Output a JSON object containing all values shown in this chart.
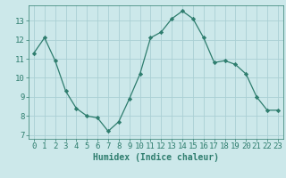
{
  "x": [
    0,
    1,
    2,
    3,
    4,
    5,
    6,
    7,
    8,
    9,
    10,
    11,
    12,
    13,
    14,
    15,
    16,
    17,
    18,
    19,
    20,
    21,
    22,
    23
  ],
  "y": [
    11.3,
    12.1,
    10.9,
    9.3,
    8.4,
    8.0,
    7.9,
    7.2,
    7.7,
    8.9,
    10.2,
    12.1,
    12.4,
    13.1,
    13.5,
    13.1,
    12.1,
    10.8,
    10.9,
    10.7,
    10.2,
    9.0,
    8.3,
    8.3
  ],
  "line_color": "#2e7d6e",
  "marker": "D",
  "marker_size": 2.2,
  "bg_color": "#cce8ea",
  "grid_color": "#aad0d4",
  "xlabel": "Humidex (Indice chaleur)",
  "ylim": [
    6.8,
    13.8
  ],
  "xlim": [
    -0.5,
    23.5
  ],
  "yticks": [
    7,
    8,
    9,
    10,
    11,
    12,
    13
  ],
  "xticks": [
    0,
    1,
    2,
    3,
    4,
    5,
    6,
    7,
    8,
    9,
    10,
    11,
    12,
    13,
    14,
    15,
    16,
    17,
    18,
    19,
    20,
    21,
    22,
    23
  ],
  "xlabel_fontsize": 7,
  "tick_fontsize": 6.5,
  "line_width": 0.9
}
